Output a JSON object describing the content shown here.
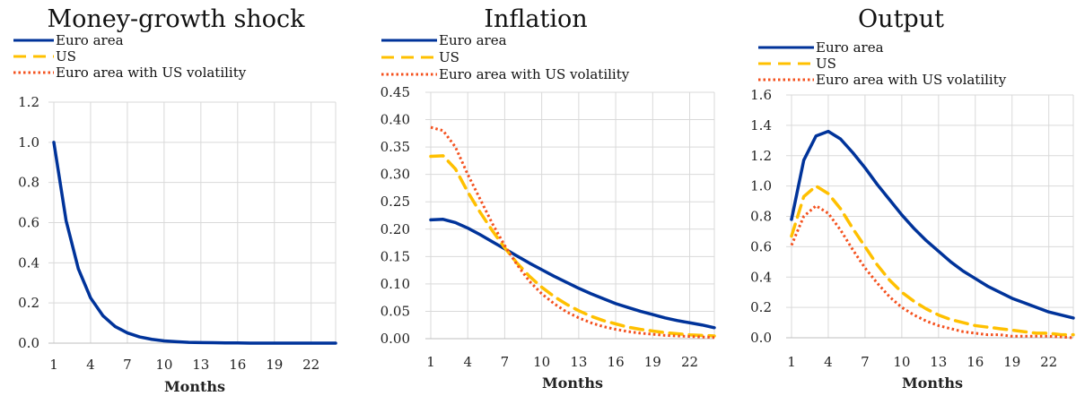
{
  "chart_data": [
    {
      "type": "line",
      "title": "Money-growth shock",
      "xlabel": "Months",
      "ylabel": "",
      "ylim": [
        0,
        1.2
      ],
      "y_ticks": [
        "0.0",
        "0.2",
        "0.4",
        "0.6",
        "0.8",
        "1.0",
        "1.2"
      ],
      "x_ticks": [
        "1",
        "4",
        "7",
        "10",
        "13",
        "16",
        "19",
        "22"
      ],
      "x": [
        1,
        2,
        3,
        4,
        5,
        6,
        7,
        8,
        9,
        10,
        11,
        12,
        13,
        14,
        15,
        16,
        17,
        18,
        19,
        20,
        21,
        22,
        23,
        24
      ],
      "grid": true,
      "legend_entries": [
        "Euro area",
        "US",
        "Euro area with US volatility"
      ],
      "series": [
        {
          "name": "Euro area",
          "color": "#00339a",
          "style": "solid",
          "values": [
            1.0,
            0.61,
            0.37,
            0.225,
            0.137,
            0.083,
            0.051,
            0.031,
            0.019,
            0.011,
            0.007,
            0.004,
            0.003,
            0.002,
            0.001,
            0.001,
            0.0,
            0.0,
            0.0,
            0.0,
            0.0,
            0.0,
            0.0,
            0.0
          ]
        }
      ]
    },
    {
      "type": "line",
      "title": "Inflation",
      "xlabel": "Months",
      "ylabel": "",
      "ylim": [
        0,
        0.45
      ],
      "y_ticks": [
        "0.00",
        "0.05",
        "0.10",
        "0.15",
        "0.20",
        "0.25",
        "0.30",
        "0.35",
        "0.40",
        "0.45"
      ],
      "x_ticks": [
        "1",
        "4",
        "7",
        "10",
        "13",
        "16",
        "19",
        "22"
      ],
      "x": [
        1,
        2,
        3,
        4,
        5,
        6,
        7,
        8,
        9,
        10,
        11,
        12,
        13,
        14,
        15,
        16,
        17,
        18,
        19,
        20,
        21,
        22,
        23,
        24
      ],
      "grid": true,
      "legend_entries": [
        "Euro area",
        "US",
        "Euro area with US volatility"
      ],
      "series": [
        {
          "name": "Euro area",
          "color": "#00339a",
          "style": "solid",
          "values": [
            0.217,
            0.218,
            0.212,
            0.202,
            0.19,
            0.177,
            0.164,
            0.151,
            0.138,
            0.126,
            0.114,
            0.103,
            0.092,
            0.082,
            0.073,
            0.064,
            0.057,
            0.05,
            0.044,
            0.038,
            0.033,
            0.029,
            0.025,
            0.02
          ]
        },
        {
          "name": "US",
          "color": "#ffc000",
          "style": "dashed",
          "values": [
            0.333,
            0.334,
            0.31,
            0.268,
            0.231,
            0.197,
            0.166,
            0.138,
            0.114,
            0.094,
            0.077,
            0.063,
            0.051,
            0.041,
            0.033,
            0.027,
            0.021,
            0.017,
            0.014,
            0.011,
            0.009,
            0.007,
            0.006,
            0.005
          ]
        },
        {
          "name": "Euro area with US volatility",
          "color": "#f4511e",
          "style": "dotted",
          "values": [
            0.386,
            0.38,
            0.35,
            0.3,
            0.255,
            0.21,
            0.17,
            0.135,
            0.105,
            0.082,
            0.064,
            0.049,
            0.038,
            0.029,
            0.022,
            0.017,
            0.013,
            0.01,
            0.008,
            0.006,
            0.005,
            0.004,
            0.003,
            0.002
          ]
        }
      ]
    },
    {
      "type": "line",
      "title": "Output",
      "xlabel": "Months",
      "ylabel": "",
      "ylim": [
        0,
        1.6
      ],
      "y_ticks": [
        "0.0",
        "0.2",
        "0.4",
        "0.6",
        "0.8",
        "1.0",
        "1.2",
        "1.4",
        "1.6"
      ],
      "x_ticks": [
        "1",
        "4",
        "7",
        "10",
        "13",
        "16",
        "19",
        "22"
      ],
      "x": [
        1,
        2,
        3,
        4,
        5,
        6,
        7,
        8,
        9,
        10,
        11,
        12,
        13,
        14,
        15,
        16,
        17,
        18,
        19,
        20,
        21,
        22,
        23,
        24
      ],
      "grid": true,
      "legend_entries": [
        "Euro area",
        "US",
        "Euro area with US volatility"
      ],
      "series": [
        {
          "name": "Euro area",
          "color": "#00339a",
          "style": "solid",
          "values": [
            0.78,
            1.17,
            1.33,
            1.36,
            1.31,
            1.22,
            1.12,
            1.01,
            0.91,
            0.81,
            0.72,
            0.64,
            0.57,
            0.5,
            0.44,
            0.39,
            0.34,
            0.3,
            0.26,
            0.23,
            0.2,
            0.17,
            0.15,
            0.13
          ]
        },
        {
          "name": "US",
          "color": "#ffc000",
          "style": "dashed",
          "values": [
            0.67,
            0.93,
            1.0,
            0.95,
            0.85,
            0.72,
            0.6,
            0.48,
            0.38,
            0.3,
            0.24,
            0.19,
            0.15,
            0.12,
            0.1,
            0.08,
            0.07,
            0.06,
            0.05,
            0.04,
            0.03,
            0.03,
            0.02,
            0.02
          ]
        },
        {
          "name": "Euro area with US volatility",
          "color": "#f4511e",
          "style": "dotted",
          "values": [
            0.61,
            0.8,
            0.87,
            0.82,
            0.71,
            0.58,
            0.46,
            0.36,
            0.27,
            0.2,
            0.15,
            0.11,
            0.08,
            0.06,
            0.04,
            0.03,
            0.02,
            0.02,
            0.01,
            0.01,
            0.01,
            0.01,
            0.005,
            0.0
          ]
        }
      ]
    }
  ]
}
